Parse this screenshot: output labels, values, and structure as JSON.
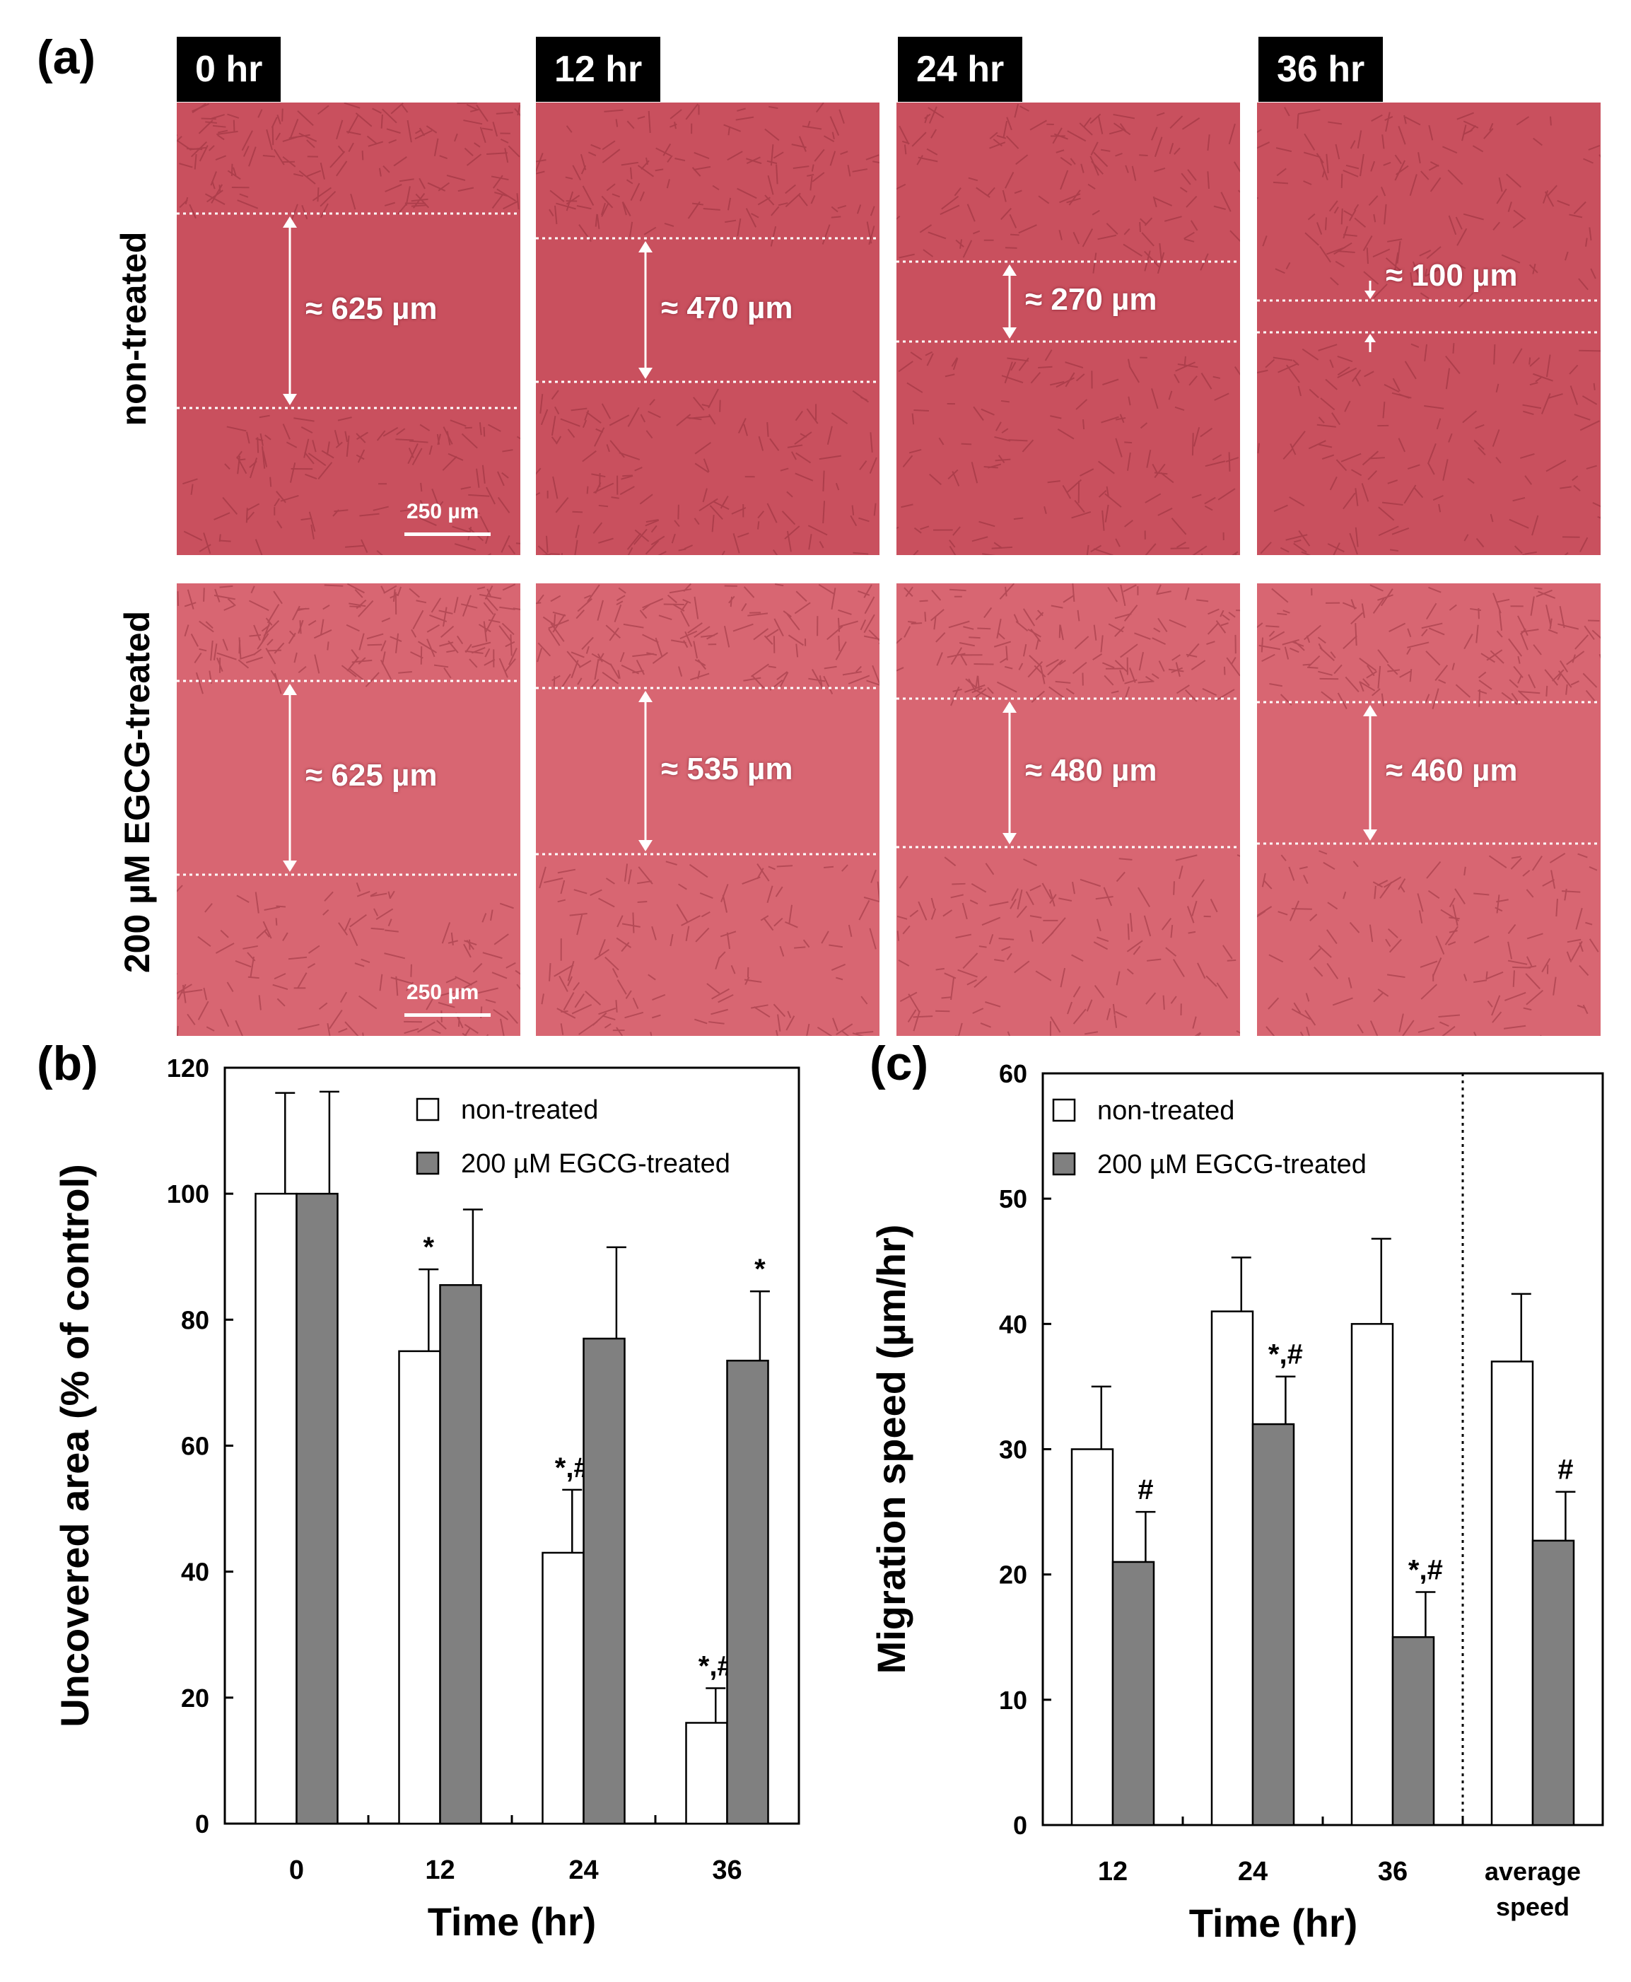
{
  "panel_a": {
    "letter": "(a)",
    "time_labels": [
      "0 hr",
      "12 hr",
      "24 hr",
      "36 hr"
    ],
    "rows": [
      {
        "label": "non-treated",
        "gaps": [
          "≈ 625 µm",
          "≈ 470 µm",
          "≈ 270 µm",
          "≈ 100 µm"
        ],
        "scale_bar": "250 µm"
      },
      {
        "label": "200 µM EGCG-treated",
        "gaps": [
          "≈ 625 µm",
          "≈ 535 µm",
          "≈ 480 µm",
          "≈ 460 µm"
        ],
        "scale_bar": "250 µm"
      }
    ],
    "colors": {
      "photo_bg": "#c9505e",
      "photo_light": "#d86672",
      "cell_line": "#8c2a36"
    }
  },
  "chart_data": [
    {
      "panel": "(b)",
      "type": "bar",
      "ylabel": "Uncovered area (% of control)",
      "xlabel": "Time (hr)",
      "categories": [
        "0",
        "12",
        "24",
        "36"
      ],
      "ylim": [
        0,
        120
      ],
      "yticks": [
        0,
        20,
        40,
        60,
        80,
        100,
        120
      ],
      "series": [
        {
          "name": "non-treated",
          "color": "#ffffff",
          "values": [
            100,
            75,
            43,
            16
          ],
          "errors": [
            16,
            13,
            10,
            5.5
          ],
          "labels": [
            "",
            "*",
            "*,#",
            "*,#"
          ]
        },
        {
          "name": "200 µM EGCG-treated",
          "color": "#808080",
          "values": [
            100,
            85.5,
            77,
            73.5
          ],
          "errors": [
            16.2,
            12,
            14.5,
            11
          ],
          "labels": [
            "",
            "",
            "",
            "*"
          ]
        }
      ],
      "legend": "top-right"
    },
    {
      "panel": "(c)",
      "type": "bar",
      "ylabel": "Migration speed (µm/hr)",
      "xlabel": "Time (hr)",
      "categories": [
        "12",
        "24",
        "36",
        "average speed"
      ],
      "ylim": [
        0,
        60
      ],
      "yticks": [
        0,
        10,
        20,
        30,
        40,
        50,
        60
      ],
      "series": [
        {
          "name": "non-treated",
          "color": "#ffffff",
          "values": [
            30,
            41,
            40,
            37
          ],
          "errors": [
            5,
            4.3,
            6.8,
            5.4
          ],
          "labels": [
            "",
            "",
            "",
            ""
          ]
        },
        {
          "name": "200 µM EGCG-treated",
          "color": "#808080",
          "values": [
            21,
            32,
            15,
            22.7
          ],
          "errors": [
            4,
            3.8,
            3.6,
            3.9
          ],
          "labels": [
            "#",
            "*,#",
            "*,#",
            "#"
          ]
        }
      ],
      "separator_before_category": 3,
      "legend": "top-left"
    }
  ]
}
